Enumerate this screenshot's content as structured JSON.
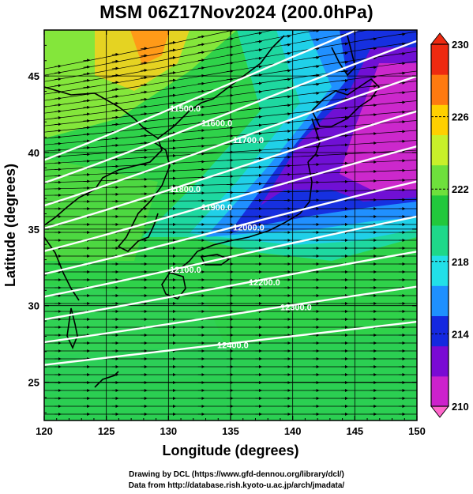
{
  "title": "MSM 06Z17Nov2024 (200.0hPa)",
  "axes": {
    "xlabel": "Longitude (degrees)",
    "ylabel": "Latitude  (degrees)",
    "xlim": [
      120,
      150
    ],
    "ylim": [
      22.5,
      48
    ],
    "xticks": [
      120,
      125,
      130,
      135,
      140,
      145,
      150
    ],
    "yticks": [
      25,
      30,
      35,
      40,
      45
    ],
    "grid": true
  },
  "colorbar": {
    "min": 210,
    "max": 230,
    "tick_labels": [
      "230",
      "226",
      "222",
      "218",
      "214",
      "210"
    ],
    "colors": [
      "#cc22cc",
      "#7a0ad4",
      "#1428e0",
      "#1e90ff",
      "#22e0e8",
      "#1ed88a",
      "#22c83c",
      "#6ee03c",
      "#c8f02a",
      "#ffd000",
      "#ff7a10",
      "#ee2a10"
    ]
  },
  "contours": [
    {
      "label": "11500.0"
    },
    {
      "label": "11600.0"
    },
    {
      "label": "11700.0"
    },
    {
      "label": "11800.0"
    },
    {
      "label": "11900.0"
    },
    {
      "label": "12000.0"
    },
    {
      "label": "12100.0"
    },
    {
      "label": "12200.0"
    },
    {
      "label": "12300.0"
    },
    {
      "label": "12400.0"
    }
  ],
  "credits": {
    "line1": "Drawing by DCL (https://www.gfd-dennou.org/library/dcl/)",
    "line2": "Data from http://database.rish.kyoto-u.ac.jp/arch/jmadata/"
  }
}
